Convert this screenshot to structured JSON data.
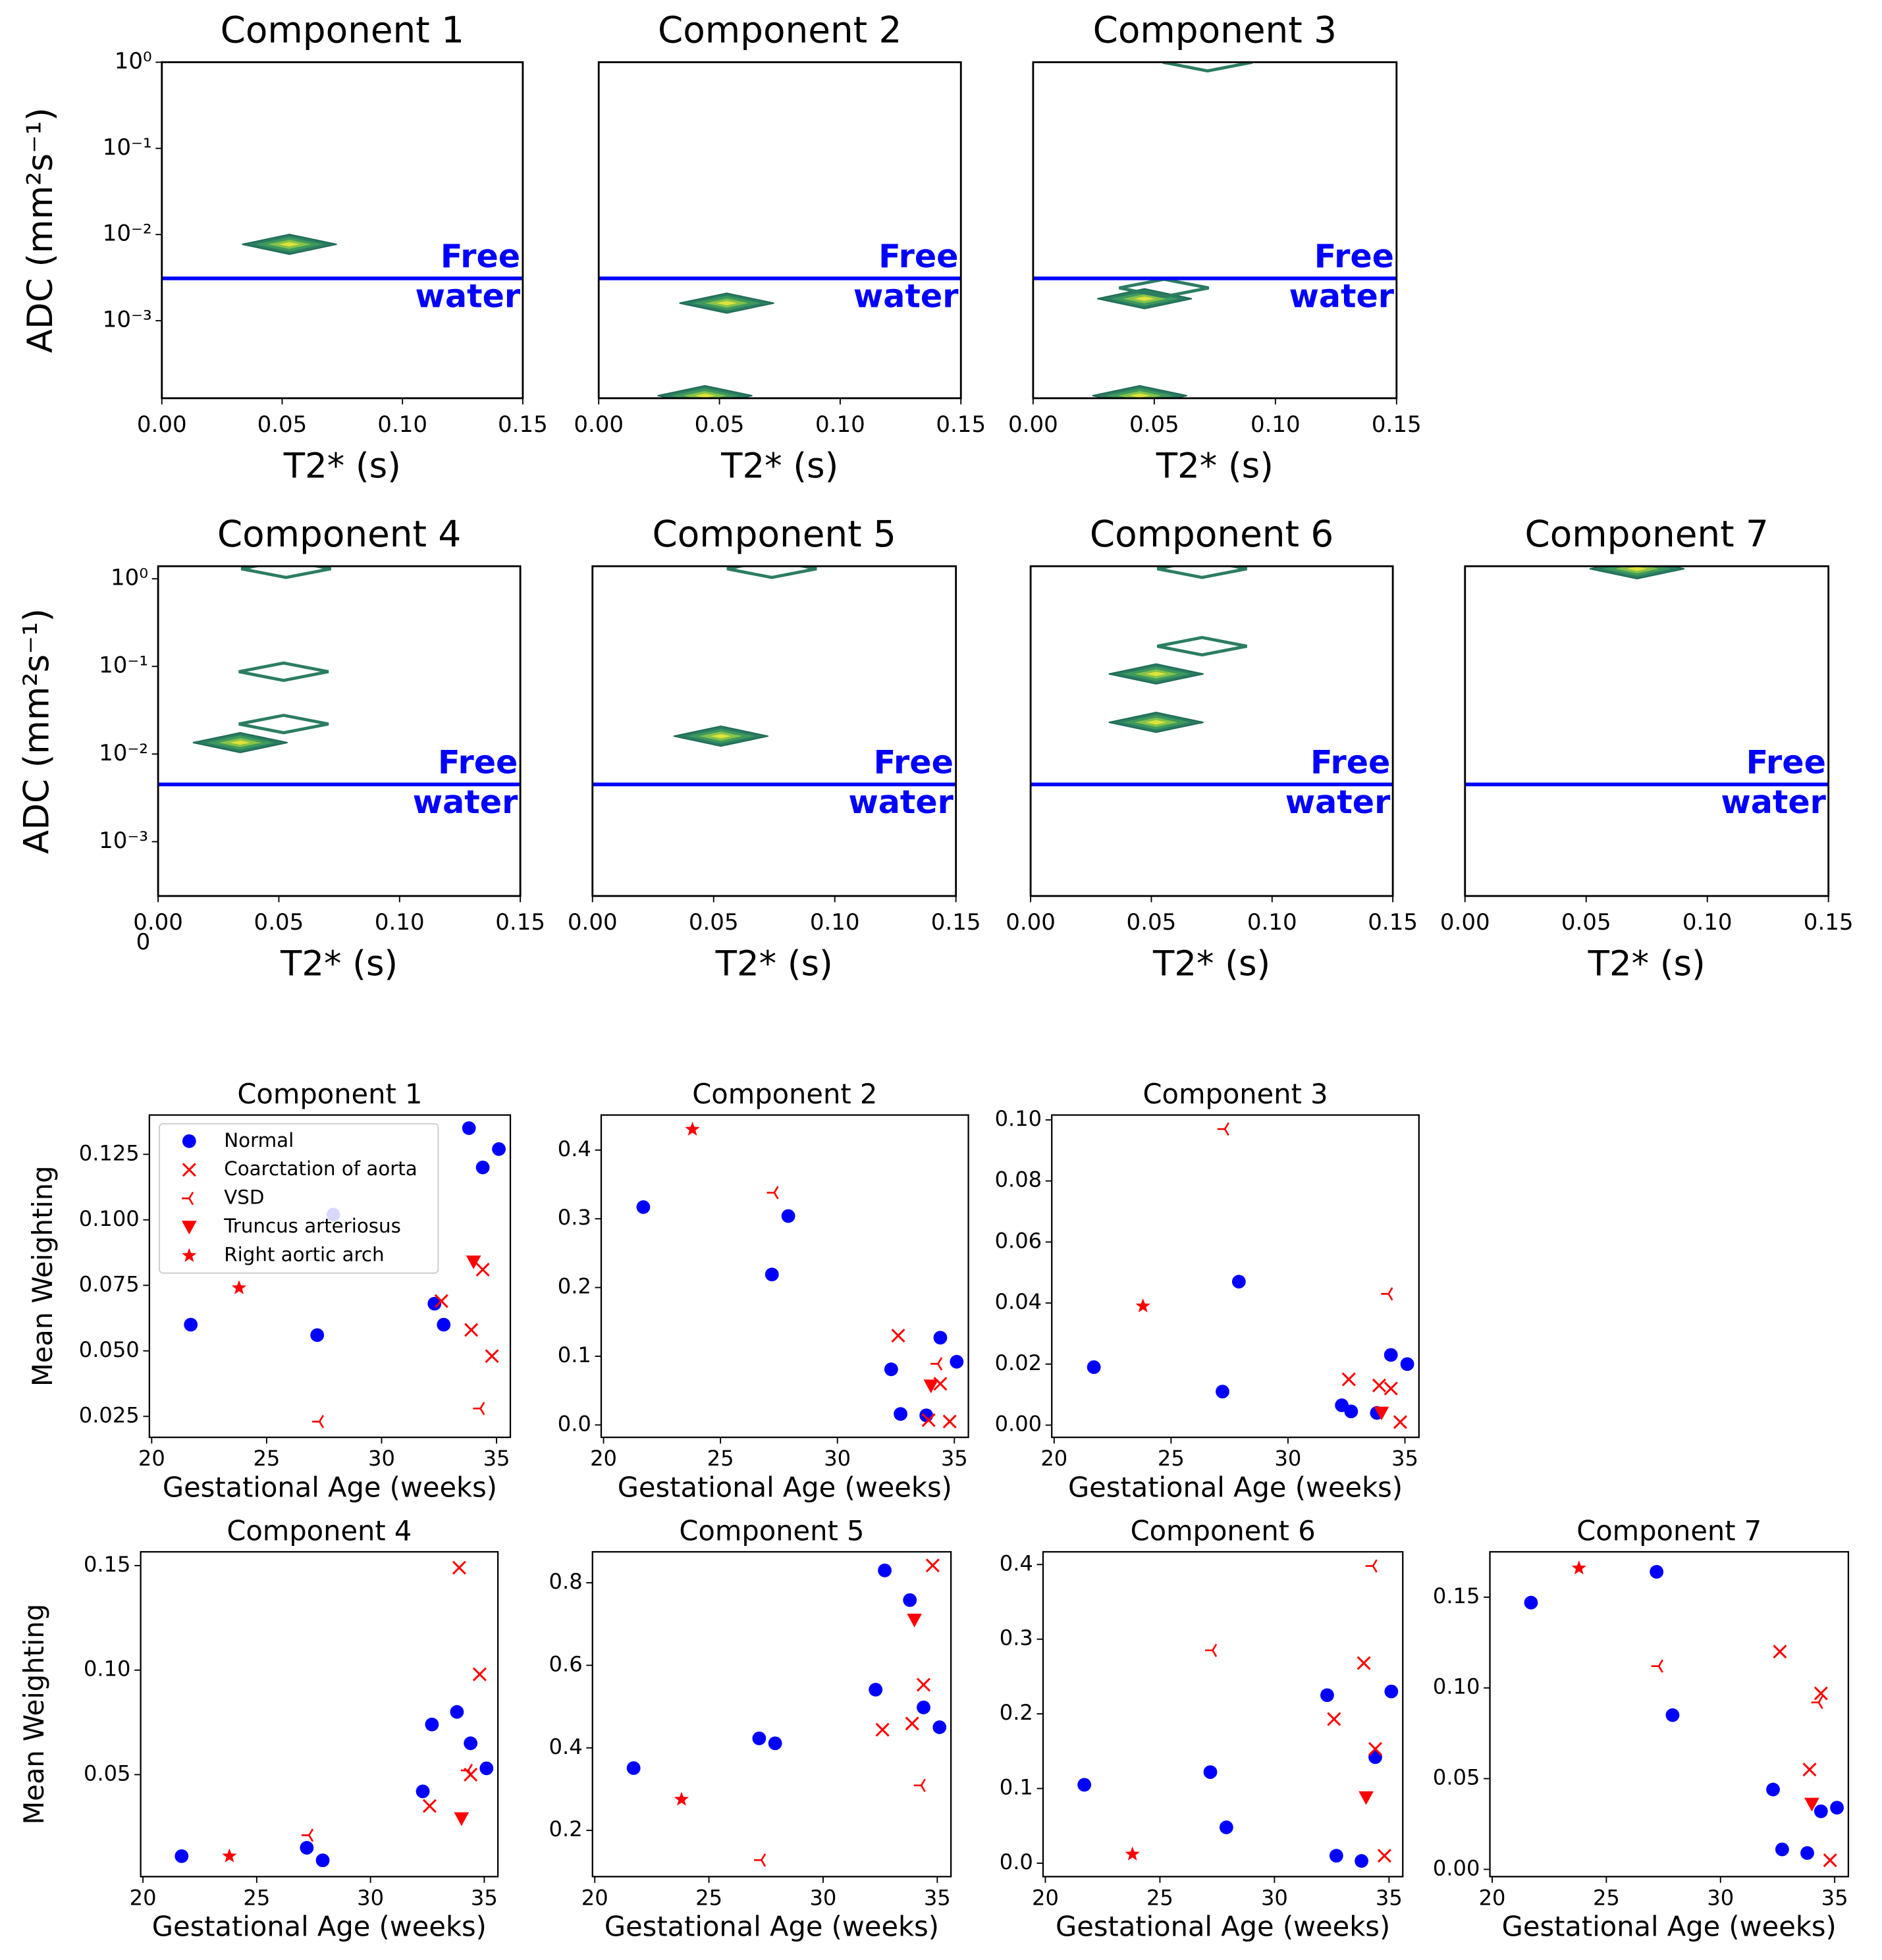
{
  "chart_data": [
    {
      "type": "contour",
      "title": "Component 1",
      "xlabel": "T2* (s)",
      "ylabel": "ADC (mm²s⁻¹)",
      "log_y": true,
      "xlim": [
        0,
        0.15
      ],
      "ylim": [
        0.000126,
        1
      ],
      "xticks": [
        {
          "value": 0,
          "label": "0.00"
        },
        {
          "value": 0.05,
          "label": "0.05"
        },
        {
          "value": 0.1,
          "label": "0.10"
        },
        {
          "value": 0.15,
          "label": "0.15"
        }
      ],
      "yticks": [
        {
          "value": 0.001,
          "label": "10⁻³"
        },
        {
          "value": 0.01,
          "label": "10⁻²"
        },
        {
          "value": 0.1,
          "label": "10⁻¹"
        },
        {
          "value": 1,
          "label": "10⁰"
        }
      ],
      "free_water": {
        "y": 0.0031,
        "label": [
          "Free",
          "water"
        ],
        "color": "#0000ff"
      },
      "blobs": [
        {
          "x": 0.053,
          "y": 0.0077,
          "filled": true
        }
      ]
    },
    {
      "type": "contour",
      "title": "Component 2",
      "xlabel": "T2* (s)",
      "log_y": true,
      "xlim": [
        0,
        0.15
      ],
      "ylim": [
        0.000126,
        1
      ],
      "xticks": [
        {
          "value": 0,
          "label": "0.00"
        },
        {
          "value": 0.05,
          "label": "0.05"
        },
        {
          "value": 0.1,
          "label": "0.10"
        },
        {
          "value": 0.15,
          "label": "0.15"
        }
      ],
      "free_water": {
        "y": 0.0031,
        "label": [
          "Free",
          "water"
        ],
        "color": "#0000ff"
      },
      "blobs": [
        {
          "x": 0.053,
          "y": 0.0016,
          "filled": true
        },
        {
          "x": 0.044,
          "y": 0.000135,
          "filled": true
        }
      ]
    },
    {
      "type": "contour",
      "title": "Component 3",
      "xlabel": "T2* (s)",
      "log_y": true,
      "xlim": [
        0,
        0.15
      ],
      "ylim": [
        0.000126,
        1
      ],
      "xticks": [
        {
          "value": 0,
          "label": "0.00"
        },
        {
          "value": 0.05,
          "label": "0.05"
        },
        {
          "value": 0.1,
          "label": "0.10"
        },
        {
          "value": 0.15,
          "label": "0.15"
        }
      ],
      "free_water": {
        "y": 0.0031,
        "label": [
          "Free",
          "water"
        ],
        "color": "#0000ff"
      },
      "blobs": [
        {
          "x": 0.072,
          "y": 1,
          "filled": false
        },
        {
          "x": 0.046,
          "y": 0.0018,
          "filled": true
        },
        {
          "x": 0.054,
          "y": 0.0024,
          "filled": false
        },
        {
          "x": 0.044,
          "y": 0.000135,
          "filled": true
        }
      ]
    },
    {
      "type": "contour",
      "title": "Component 4",
      "xlabel": "T2* (s)",
      "ylabel": "ADC (mm²s⁻¹)",
      "log_y": true,
      "stray_label": "0",
      "xlim": [
        0,
        0.15
      ],
      "ylim": [
        0.00024,
        1.39
      ],
      "xticks": [
        {
          "value": 0,
          "label": "0.00"
        },
        {
          "value": 0.05,
          "label": "0.05"
        },
        {
          "value": 0.1,
          "label": "0.10"
        },
        {
          "value": 0.15,
          "label": "0.15"
        }
      ],
      "yticks": [
        {
          "value": 0.001,
          "label": "10⁻³"
        },
        {
          "value": 0.01,
          "label": "10⁻²"
        },
        {
          "value": 0.1,
          "label": "10⁻¹"
        },
        {
          "value": 1,
          "label": "10⁰"
        }
      ],
      "free_water": {
        "y": 0.0045,
        "label": [
          "Free",
          "water"
        ],
        "color": "#0000ff"
      },
      "blobs": [
        {
          "x": 0.053,
          "y": 1.3,
          "filled": false
        },
        {
          "x": 0.052,
          "y": 0.087,
          "filled": false
        },
        {
          "x": 0.052,
          "y": 0.022,
          "filled": false
        },
        {
          "x": 0.034,
          "y": 0.0135,
          "filled": true
        }
      ]
    },
    {
      "type": "contour",
      "title": "Component 5",
      "xlabel": "T2* (s)",
      "log_y": true,
      "xlim": [
        0,
        0.15
      ],
      "ylim": [
        0.00024,
        1.39
      ],
      "xticks": [
        {
          "value": 0,
          "label": "0.00"
        },
        {
          "value": 0.05,
          "label": "0.05"
        },
        {
          "value": 0.1,
          "label": "0.10"
        },
        {
          "value": 0.15,
          "label": "0.15"
        }
      ],
      "free_water": {
        "y": 0.0045,
        "label": [
          "Free",
          "water"
        ],
        "color": "#0000ff"
      },
      "blobs": [
        {
          "x": 0.074,
          "y": 1.3,
          "filled": false
        },
        {
          "x": 0.053,
          "y": 0.016,
          "filled": true
        }
      ]
    },
    {
      "type": "contour",
      "title": "Component 6",
      "xlabel": "T2* (s)",
      "log_y": true,
      "xlim": [
        0,
        0.15
      ],
      "ylim": [
        0.00024,
        1.39
      ],
      "xticks": [
        {
          "value": 0,
          "label": "0.00"
        },
        {
          "value": 0.05,
          "label": "0.05"
        },
        {
          "value": 0.1,
          "label": "0.10"
        },
        {
          "value": 0.15,
          "label": "0.15"
        }
      ],
      "free_water": {
        "y": 0.0045,
        "label": [
          "Free",
          "water"
        ],
        "color": "#0000ff"
      },
      "blobs": [
        {
          "x": 0.071,
          "y": 1.3,
          "filled": false
        },
        {
          "x": 0.071,
          "y": 0.17,
          "filled": false
        },
        {
          "x": 0.052,
          "y": 0.082,
          "filled": true
        },
        {
          "x": 0.052,
          "y": 0.023,
          "filled": true
        }
      ]
    },
    {
      "type": "contour",
      "title": "Component 7",
      "xlabel": "T2* (s)",
      "log_y": true,
      "xlim": [
        0,
        0.15
      ],
      "ylim": [
        0.00024,
        1.39
      ],
      "xticks": [
        {
          "value": 0,
          "label": "0.00"
        },
        {
          "value": 0.05,
          "label": "0.05"
        },
        {
          "value": 0.1,
          "label": "0.10"
        },
        {
          "value": 0.15,
          "label": "0.15"
        }
      ],
      "free_water": {
        "y": 0.0045,
        "label": [
          "Free",
          "water"
        ],
        "color": "#0000ff"
      },
      "blobs": [
        {
          "x": 0.071,
          "y": 1.3,
          "filled": true
        }
      ]
    },
    {
      "type": "scatter",
      "title": "Component 1",
      "xlabel": "Gestational Age (weeks)",
      "ylabel": "Mean Weighting",
      "legend": "upper left",
      "xlim": [
        19.9,
        35.6
      ],
      "ylim": [
        0.017,
        0.14
      ],
      "xticks": [
        20,
        25,
        30,
        35
      ],
      "yticks": [
        0.025,
        {
          "value": 0.05,
          "label": "0.050"
        },
        0.075,
        {
          "value": 0.1,
          "label": "0.100"
        },
        0.125
      ],
      "series": [
        {
          "name": "Normal",
          "color": "#0000ff",
          "marker": "o",
          "x": [
            21.7,
            27.2,
            27.9,
            32.3,
            32.7,
            33.8,
            34.4,
            35.1
          ],
          "values": [
            0.06,
            0.056,
            0.102,
            0.068,
            0.06,
            0.135,
            0.12,
            0.127
          ]
        },
        {
          "name": "Coarctation of aorta",
          "color": "#ff0000",
          "marker": "x",
          "x": [
            32.6,
            33.9,
            34.4,
            34.8
          ],
          "values": [
            0.069,
            0.058,
            0.081,
            0.048
          ]
        },
        {
          "name": "VSD",
          "color": "#ff0000",
          "marker": "tri_left",
          "x": [
            27.3,
            34.3
          ],
          "values": [
            0.023,
            0.028
          ]
        },
        {
          "name": "Truncus arteriosus",
          "color": "#ff0000",
          "marker": "v",
          "x": [
            34.0
          ],
          "values": [
            0.084
          ]
        },
        {
          "name": "Right aortic arch",
          "color": "#ff0000",
          "marker": "*",
          "x": [
            23.8
          ],
          "values": [
            0.074
          ]
        }
      ]
    },
    {
      "type": "scatter",
      "title": "Component 2",
      "xlabel": "Gestational Age (weeks)",
      "xlim": [
        19.9,
        35.6
      ],
      "ylim": [
        -0.018,
        0.451
      ],
      "xticks": [
        20,
        25,
        30,
        35
      ],
      "yticks": [
        {
          "value": 0,
          "label": "0.0"
        },
        0.1,
        0.2,
        0.3,
        0.4
      ],
      "series": [
        {
          "color": "#0000ff",
          "marker": "o",
          "x": [
            21.7,
            27.2,
            27.9,
            32.3,
            32.7,
            33.8,
            34.4,
            35.1
          ],
          "values": [
            0.317,
            0.219,
            0.304,
            0.081,
            0.016,
            0.014,
            0.127,
            0.092
          ]
        },
        {
          "color": "#ff0000",
          "marker": "x",
          "x": [
            32.6,
            33.9,
            34.4,
            34.8
          ],
          "values": [
            0.13,
            0.007,
            0.06,
            0.005
          ]
        },
        {
          "color": "#ff0000",
          "marker": "tri_left",
          "x": [
            27.3,
            34.3
          ],
          "values": [
            0.338,
            0.089
          ]
        },
        {
          "color": "#ff0000",
          "marker": "v",
          "x": [
            34.0
          ],
          "values": [
            0.057
          ]
        },
        {
          "color": "#ff0000",
          "marker": "*",
          "x": [
            23.8
          ],
          "values": [
            0.43
          ]
        }
      ]
    },
    {
      "type": "scatter",
      "title": "Component 3",
      "xlabel": "Gestational Age (weeks)",
      "xlim": [
        19.9,
        35.6
      ],
      "ylim": [
        -0.004,
        0.1016
      ],
      "xticks": [
        20,
        25,
        30,
        35
      ],
      "yticks": [
        {
          "value": 0,
          "label": "0.00"
        },
        0.02,
        0.04,
        0.06,
        0.08,
        {
          "value": 0.1,
          "label": "0.10"
        }
      ],
      "series": [
        {
          "color": "#0000ff",
          "marker": "o",
          "x": [
            21.7,
            27.2,
            27.9,
            32.3,
            32.7,
            33.8,
            34.4,
            35.1
          ],
          "values": [
            0.019,
            0.011,
            0.047,
            0.0065,
            0.0045,
            0.004,
            0.023,
            0.02
          ]
        },
        {
          "color": "#ff0000",
          "marker": "x",
          "x": [
            32.6,
            33.9,
            34.4,
            34.8
          ],
          "values": [
            0.015,
            0.013,
            0.012,
            0.001
          ]
        },
        {
          "color": "#ff0000",
          "marker": "tri_left",
          "x": [
            27.3,
            34.3
          ],
          "values": [
            0.097,
            0.043
          ]
        },
        {
          "color": "#ff0000",
          "marker": "v",
          "x": [
            34.0
          ],
          "values": [
            0.004
          ]
        },
        {
          "color": "#ff0000",
          "marker": "*",
          "x": [
            23.8
          ],
          "values": [
            0.039
          ]
        }
      ]
    },
    {
      "type": "scatter",
      "title": "Component 4",
      "xlabel": "Gestational Age (weeks)",
      "ylabel": "Mean Weighting",
      "xlim": [
        19.9,
        35.6
      ],
      "ylim": [
        0.0012,
        0.1566
      ],
      "xticks": [
        20,
        25,
        30,
        35
      ],
      "yticks": [
        0.05,
        {
          "value": 0.1,
          "label": "0.10"
        },
        0.15
      ],
      "series": [
        {
          "color": "#0000ff",
          "marker": "o",
          "x": [
            21.7,
            27.2,
            27.9,
            32.3,
            32.7,
            33.8,
            34.4,
            35.1
          ],
          "values": [
            0.011,
            0.015,
            0.009,
            0.042,
            0.074,
            0.08,
            0.065,
            0.053
          ]
        },
        {
          "color": "#ff0000",
          "marker": "x",
          "x": [
            32.6,
            33.9,
            34.4,
            34.8
          ],
          "values": [
            0.035,
            0.149,
            0.05,
            0.098
          ]
        },
        {
          "color": "#ff0000",
          "marker": "tri_left",
          "x": [
            27.3,
            34.3
          ],
          "values": [
            0.021,
            0.052
          ]
        },
        {
          "color": "#ff0000",
          "marker": "v",
          "x": [
            34.0
          ],
          "values": [
            0.029
          ]
        },
        {
          "color": "#ff0000",
          "marker": "*",
          "x": [
            23.8
          ],
          "values": [
            0.011
          ]
        }
      ]
    },
    {
      "type": "scatter",
      "title": "Component 5",
      "xlabel": "Gestational Age (weeks)",
      "xlim": [
        19.9,
        35.6
      ],
      "ylim": [
        0.088,
        0.875
      ],
      "xticks": [
        20,
        25,
        30,
        35
      ],
      "yticks": [
        0.2,
        0.4,
        0.6,
        0.8
      ],
      "series": [
        {
          "color": "#0000ff",
          "marker": "o",
          "x": [
            21.7,
            27.2,
            27.9,
            32.3,
            32.7,
            33.8,
            34.4,
            35.1
          ],
          "values": [
            0.351,
            0.423,
            0.411,
            0.541,
            0.83,
            0.758,
            0.498,
            0.45
          ]
        },
        {
          "color": "#ff0000",
          "marker": "x",
          "x": [
            32.6,
            33.9,
            34.4,
            34.8
          ],
          "values": [
            0.444,
            0.459,
            0.553,
            0.842
          ]
        },
        {
          "color": "#ff0000",
          "marker": "tri_left",
          "x": [
            27.3,
            34.3
          ],
          "values": [
            0.128,
            0.309
          ]
        },
        {
          "color": "#ff0000",
          "marker": "v",
          "x": [
            34.0
          ],
          "values": [
            0.71
          ]
        },
        {
          "color": "#ff0000",
          "marker": "*",
          "x": [
            23.8
          ],
          "values": [
            0.275
          ]
        }
      ]
    },
    {
      "type": "scatter",
      "title": "Component 6",
      "xlabel": "Gestational Age (weeks)",
      "xlim": [
        19.9,
        35.6
      ],
      "ylim": [
        -0.018,
        0.417
      ],
      "xticks": [
        20,
        25,
        30,
        35
      ],
      "yticks": [
        {
          "value": 0,
          "label": "0.0"
        },
        0.1,
        0.2,
        0.3,
        0.4
      ],
      "series": [
        {
          "color": "#0000ff",
          "marker": "o",
          "x": [
            21.7,
            27.2,
            27.9,
            32.3,
            32.7,
            33.8,
            34.4,
            35.1
          ],
          "values": [
            0.105,
            0.122,
            0.048,
            0.225,
            0.01,
            0.003,
            0.142,
            0.23
          ]
        },
        {
          "color": "#ff0000",
          "marker": "x",
          "x": [
            32.6,
            33.9,
            34.4,
            34.8
          ],
          "values": [
            0.193,
            0.268,
            0.153,
            0.01
          ]
        },
        {
          "color": "#ff0000",
          "marker": "tri_left",
          "x": [
            27.3,
            34.3
          ],
          "values": [
            0.285,
            0.398
          ]
        },
        {
          "color": "#ff0000",
          "marker": "v",
          "x": [
            34.0
          ],
          "values": [
            0.088
          ]
        },
        {
          "color": "#ff0000",
          "marker": "*",
          "x": [
            23.8
          ],
          "values": [
            0.012
          ]
        }
      ]
    },
    {
      "type": "scatter",
      "title": "Component 7",
      "xlabel": "Gestational Age (weeks)",
      "xlim": [
        19.9,
        35.6
      ],
      "ylim": [
        -0.004,
        0.175
      ],
      "xticks": [
        20,
        25,
        30,
        35
      ],
      "yticks": [
        {
          "value": 0,
          "label": "0.00"
        },
        0.05,
        {
          "value": 0.1,
          "label": "0.10"
        },
        0.15
      ],
      "series": [
        {
          "color": "#0000ff",
          "marker": "o",
          "x": [
            21.7,
            27.2,
            27.9,
            32.3,
            32.7,
            33.8,
            34.4,
            35.1
          ],
          "values": [
            0.147,
            0.164,
            0.085,
            0.044,
            0.011,
            0.009,
            0.032,
            0.034
          ]
        },
        {
          "color": "#ff0000",
          "marker": "x",
          "x": [
            32.6,
            33.9,
            34.4,
            34.8
          ],
          "values": [
            0.12,
            0.055,
            0.097,
            0.005
          ]
        },
        {
          "color": "#ff0000",
          "marker": "tri_left",
          "x": [
            27.3,
            34.3
          ],
          "values": [
            0.112,
            0.092
          ]
        },
        {
          "color": "#ff0000",
          "marker": "v",
          "x": [
            34.0
          ],
          "values": [
            0.036
          ]
        },
        {
          "color": "#ff0000",
          "marker": "*",
          "x": [
            23.8
          ],
          "values": [
            0.166
          ]
        }
      ]
    }
  ]
}
